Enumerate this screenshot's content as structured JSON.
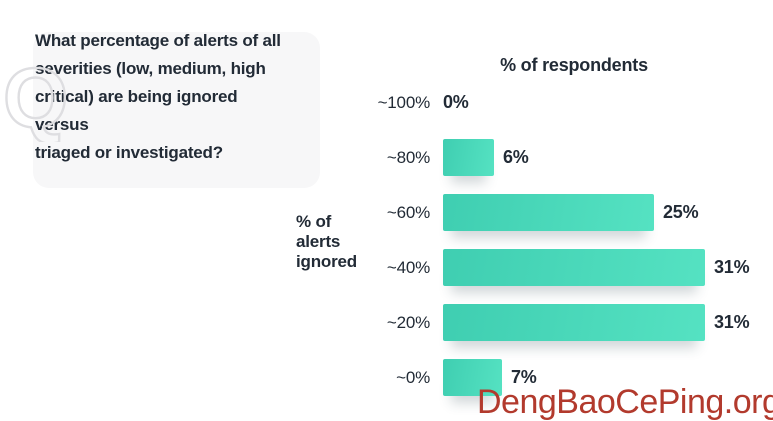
{
  "question": {
    "text": "What percentage of alerts of all\nseverities (low, medium, high\ncritical) are being ignored versus\ntriaged or investigated?"
  },
  "chart_data": {
    "type": "bar",
    "orientation": "horizontal",
    "title": "% of respondents",
    "xlabel": "% of respondents",
    "ylabel": "% of alerts ignored",
    "ylabel_display": "% of\nalerts\nignored",
    "categories": [
      "~100%",
      "~80%",
      "~60%",
      "~40%",
      "~20%",
      "~0%"
    ],
    "values": [
      0,
      6,
      25,
      31,
      31,
      7
    ],
    "value_labels": [
      "0%",
      "6%",
      "25%",
      "31%",
      "31%",
      "7%"
    ],
    "xlim": [
      0,
      31
    ],
    "grid": "off",
    "legend": "none",
    "bar_gradient": [
      "#3fceb1",
      "#55e2c2"
    ]
  },
  "watermark": {
    "text": "DengBaoCePing.org",
    "color": "#b23a2d"
  },
  "colors": {
    "background": "#ffffff",
    "text_dark": "#222b36",
    "bubble_bg": "#f7f7f8",
    "q_outline": "#dedee1"
  }
}
